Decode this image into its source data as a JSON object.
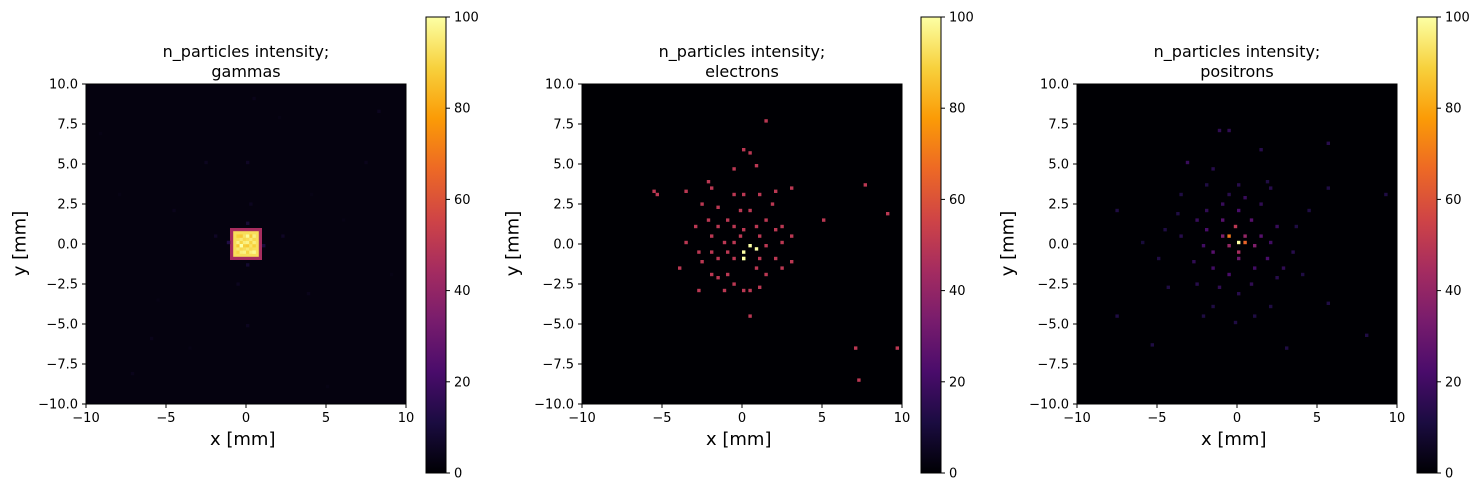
{
  "figure": {
    "colormap": "inferno",
    "colormap_stops": [
      "#000004",
      "#1b0c41",
      "#4a0c6b",
      "#781c6d",
      "#a52c60",
      "#cf4446",
      "#ed6925",
      "#fb9b06",
      "#f7d13d",
      "#fcffa4"
    ]
  },
  "chart_data": [
    {
      "type": "heatmap",
      "title_line1": "n_particles intensity;",
      "title_line2": "gammas",
      "xlabel": "x [mm]",
      "ylabel": "y [mm]",
      "xlim": [
        -10,
        10
      ],
      "ylim": [
        -10,
        10
      ],
      "xticks": [
        "−10",
        "−5",
        "0",
        "5",
        "10"
      ],
      "yticks": [
        "−10.0",
        "−7.5",
        "−5.0",
        "−2.5",
        "0.0",
        "2.5",
        "5.0",
        "7.5",
        "10.0"
      ],
      "colorbar": {
        "range": [
          0,
          100
        ],
        "ticks": [
          "0",
          "20",
          "40",
          "60",
          "80",
          "100"
        ]
      },
      "bins": 100,
      "background_level": 2,
      "hot_region": {
        "x": [
          -1,
          1
        ],
        "y": [
          -1,
          1
        ],
        "edge_level": 45,
        "fill_level": 92,
        "peak_level": 100
      },
      "pixels": [
        [
          0.2,
          0.4,
          99
        ],
        [
          -0.3,
          -0.2,
          100
        ],
        [
          0.5,
          -0.5,
          98
        ],
        [
          0.6,
          0.5,
          96
        ],
        [
          -1.2,
          0.1,
          12
        ],
        [
          1.2,
          -0.2,
          10
        ],
        [
          0.0,
          1.3,
          9
        ],
        [
          0.1,
          -1.3,
          8
        ],
        [
          -2.0,
          0.6,
          6
        ],
        [
          2.3,
          0.4,
          6
        ],
        [
          0.3,
          2.6,
          5
        ],
        [
          -0.5,
          -2.4,
          5
        ],
        [
          -4.5,
          2.0,
          4
        ],
        [
          3.8,
          -3.1,
          4
        ],
        [
          -2.5,
          5.0,
          5
        ],
        [
          0.0,
          5.0,
          6
        ],
        [
          0.2,
          -5.1,
          5
        ],
        [
          -6.0,
          -6.0,
          4
        ],
        [
          7.5,
          5.0,
          4
        ],
        [
          -8.0,
          3.2,
          3
        ],
        [
          8.4,
          8.3,
          5
        ],
        [
          0.5,
          9.0,
          4
        ],
        [
          -7.1,
          -8.2,
          4
        ],
        [
          5.2,
          -8.8,
          3
        ],
        [
          9.0,
          -2.0,
          3
        ],
        [
          -9.2,
          6.8,
          3
        ],
        [
          2.0,
          7.8,
          3
        ],
        [
          -3.4,
          -6.6,
          3
        ],
        [
          6.1,
          1.5,
          3
        ],
        [
          -5.5,
          -3.6,
          3
        ],
        [
          4.1,
          3.0,
          3
        ]
      ]
    },
    {
      "type": "heatmap",
      "title_line1": "n_particles intensity;",
      "title_line2": "electrons",
      "xlabel": "x [mm]",
      "ylabel": "y [mm]",
      "xlim": [
        -10,
        10
      ],
      "ylim": [
        -10,
        10
      ],
      "xticks": [
        "−10",
        "−5",
        "0",
        "5",
        "10"
      ],
      "yticks": [
        "−10.0",
        "−7.5",
        "−5.0",
        "−2.5",
        "0.0",
        "2.5",
        "5.0",
        "7.5",
        "10.0"
      ],
      "colorbar": {
        "range": [
          0,
          100
        ],
        "ticks": [
          "0",
          "20",
          "40",
          "60",
          "80",
          "100"
        ]
      },
      "bins": 100,
      "background_level": 0,
      "pixels": [
        [
          0.0,
          -0.6,
          100
        ],
        [
          0.4,
          -0.2,
          100
        ],
        [
          0.8,
          -0.3,
          100
        ],
        [
          0.0,
          -0.8,
          100
        ],
        [
          0.0,
          -1.0,
          100
        ],
        [
          1.5,
          7.6,
          50
        ],
        [
          0.0,
          5.8,
          50
        ],
        [
          0.4,
          5.6,
          50
        ],
        [
          0.8,
          4.8,
          50
        ],
        [
          -0.4,
          4.6,
          50
        ],
        [
          -5.6,
          3.3,
          50
        ],
        [
          -5.2,
          3.0,
          50
        ],
        [
          -3.4,
          3.3,
          50
        ],
        [
          -2.2,
          3.8,
          50
        ],
        [
          -1.8,
          3.4,
          50
        ],
        [
          -2.6,
          2.6,
          50
        ],
        [
          -1.4,
          2.3,
          50
        ],
        [
          -0.6,
          3.0,
          50
        ],
        [
          0.2,
          3.1,
          50
        ],
        [
          1.2,
          3.0,
          50
        ],
        [
          2.2,
          3.3,
          50
        ],
        [
          3.0,
          3.4,
          50
        ],
        [
          1.8,
          2.4,
          50
        ],
        [
          0.6,
          2.2,
          50
        ],
        [
          -0.2,
          2.0,
          50
        ],
        [
          -1.0,
          1.6,
          50
        ],
        [
          -2.2,
          1.4,
          50
        ],
        [
          -3.0,
          1.2,
          50
        ],
        [
          -1.6,
          1.0,
          50
        ],
        [
          -0.6,
          1.0,
          50
        ],
        [
          0.8,
          1.2,
          50
        ],
        [
          1.6,
          1.4,
          50
        ],
        [
          2.6,
          1.2,
          50
        ],
        [
          5.0,
          1.4,
          50
        ],
        [
          7.6,
          3.7,
          50
        ],
        [
          9.2,
          1.8,
          50
        ],
        [
          -2.0,
          0.4,
          50
        ],
        [
          -1.2,
          0.2,
          50
        ],
        [
          -0.4,
          0.2,
          50
        ],
        [
          1.2,
          0.6,
          50
        ],
        [
          2.0,
          0.8,
          50
        ],
        [
          3.2,
          0.6,
          50
        ],
        [
          -3.6,
          0.0,
          50
        ],
        [
          -2.8,
          -0.4,
          50
        ],
        [
          -1.8,
          -0.4,
          50
        ],
        [
          -0.8,
          -0.4,
          50
        ],
        [
          1.6,
          -0.2,
          50
        ],
        [
          2.4,
          0.0,
          50
        ],
        [
          -2.4,
          -1.2,
          50
        ],
        [
          -1.4,
          -1.0,
          50
        ],
        [
          -0.6,
          -1.0,
          50
        ],
        [
          1.0,
          -0.8,
          50
        ],
        [
          2.0,
          -1.0,
          50
        ],
        [
          3.2,
          -1.2,
          50
        ],
        [
          -4.0,
          -1.6,
          50
        ],
        [
          -2.0,
          -1.8,
          50
        ],
        [
          -0.8,
          -1.8,
          50
        ],
        [
          0.8,
          -1.6,
          50
        ],
        [
          2.6,
          -1.4,
          50
        ],
        [
          -1.6,
          -2.2,
          50
        ],
        [
          -0.4,
          -2.4,
          50
        ],
        [
          1.6,
          -2.0,
          50
        ],
        [
          -2.8,
          -3.0,
          50
        ],
        [
          -1.2,
          -3.0,
          50
        ],
        [
          0.2,
          -3.0,
          50
        ],
        [
          0.6,
          -3.0,
          50
        ],
        [
          1.0,
          -2.8,
          50
        ],
        [
          0.6,
          -4.4,
          50
        ],
        [
          7.0,
          -6.4,
          50
        ],
        [
          9.6,
          -6.4,
          50
        ],
        [
          7.4,
          -8.4,
          50
        ],
        [
          -0.2,
          0.6,
          50
        ],
        [
          0.2,
          0.8,
          50
        ]
      ]
    },
    {
      "type": "heatmap",
      "title_line1": "n_particles intensity;",
      "title_line2": "positrons",
      "xlabel": "x [mm]",
      "ylabel": "y [mm]",
      "xlim": [
        -10,
        10
      ],
      "ylim": [
        -10,
        10
      ],
      "xticks": [
        "−10",
        "−5",
        "0",
        "5",
        "10"
      ],
      "yticks": [
        "−10.0",
        "−7.5",
        "−5.0",
        "−2.5",
        "0.0",
        "2.5",
        "5.0",
        "7.5",
        "10.0"
      ],
      "colorbar": {
        "range": [
          0,
          100
        ],
        "ticks": [
          "0",
          "20",
          "40",
          "60",
          "80",
          "100"
        ]
      },
      "bins": 100,
      "background_level": 0,
      "pixels": [
        [
          0.0,
          0.2,
          100
        ],
        [
          -0.4,
          0.6,
          70
        ],
        [
          0.4,
          0.2,
          65
        ],
        [
          -0.2,
          1.0,
          50
        ],
        [
          0.2,
          -0.4,
          45
        ],
        [
          -0.6,
          -0.2,
          40
        ],
        [
          0.6,
          0.6,
          40
        ],
        [
          -1.0,
          0.4,
          35
        ],
        [
          1.0,
          -0.2,
          35
        ],
        [
          0.0,
          -1.0,
          30
        ],
        [
          -1.4,
          -0.6,
          25
        ],
        [
          1.4,
          0.6,
          25
        ],
        [
          -0.8,
          1.6,
          25
        ],
        [
          0.8,
          1.6,
          25
        ],
        [
          -1.8,
          0.8,
          22
        ],
        [
          1.8,
          -0.8,
          22
        ],
        [
          0.2,
          2.0,
          22
        ],
        [
          -0.4,
          -1.8,
          22
        ],
        [
          -2.2,
          -0.2,
          20
        ],
        [
          2.2,
          0.2,
          20
        ],
        [
          1.2,
          -1.6,
          20
        ],
        [
          -1.6,
          -1.6,
          20
        ],
        [
          2.6,
          1.2,
          18
        ],
        [
          -2.6,
          1.4,
          18
        ],
        [
          0.6,
          2.8,
          18
        ],
        [
          -0.8,
          2.6,
          18
        ],
        [
          1.6,
          2.4,
          16
        ],
        [
          -1.8,
          2.2,
          16
        ],
        [
          2.8,
          -1.4,
          16
        ],
        [
          -2.8,
          -1.2,
          16
        ],
        [
          0.8,
          -2.6,
          16
        ],
        [
          -1.2,
          -2.8,
          16
        ],
        [
          -3.4,
          0.6,
          14
        ],
        [
          3.4,
          -0.4,
          14
        ],
        [
          0.0,
          3.6,
          14
        ],
        [
          0.2,
          -3.2,
          14
        ],
        [
          -3.2,
          5.2,
          18
        ],
        [
          5.6,
          6.4,
          14
        ],
        [
          1.4,
          5.8,
          14
        ],
        [
          -1.6,
          4.6,
          14
        ],
        [
          -1.2,
          7.2,
          16
        ],
        [
          -0.4,
          7.2,
          16
        ],
        [
          2.2,
          3.4,
          14
        ],
        [
          -3.6,
          3.0,
          12
        ],
        [
          5.6,
          3.4,
          12
        ],
        [
          5.6,
          -3.8,
          12
        ],
        [
          3.0,
          -6.4,
          12
        ],
        [
          -0.2,
          -5.0,
          12
        ],
        [
          -5.2,
          -6.2,
          12
        ],
        [
          -7.6,
          -4.6,
          12
        ],
        [
          -7.4,
          2.2,
          12
        ],
        [
          8.2,
          -5.8,
          12
        ],
        [
          9.4,
          3.0,
          12
        ],
        [
          -4.2,
          -2.8,
          12
        ],
        [
          -2.2,
          -4.6,
          12
        ],
        [
          2.2,
          -4.0,
          12
        ],
        [
          4.4,
          2.2,
          12
        ],
        [
          -4.4,
          0.8,
          12
        ],
        [
          4.0,
          -1.8,
          12
        ],
        [
          -5.0,
          -1.0,
          12
        ],
        [
          -1.4,
          -4.0,
          12
        ],
        [
          1.0,
          -4.4,
          12
        ],
        [
          -3.8,
          1.8,
          12
        ],
        [
          3.6,
          1.0,
          12
        ],
        [
          -6.0,
          0.2,
          10
        ],
        [
          -2.6,
          -2.4,
          14
        ],
        [
          2.4,
          -2.2,
          14
        ],
        [
          -0.6,
          3.2,
          14
        ],
        [
          1.8,
          3.8,
          12
        ],
        [
          -2.0,
          3.6,
          12
        ]
      ]
    }
  ]
}
